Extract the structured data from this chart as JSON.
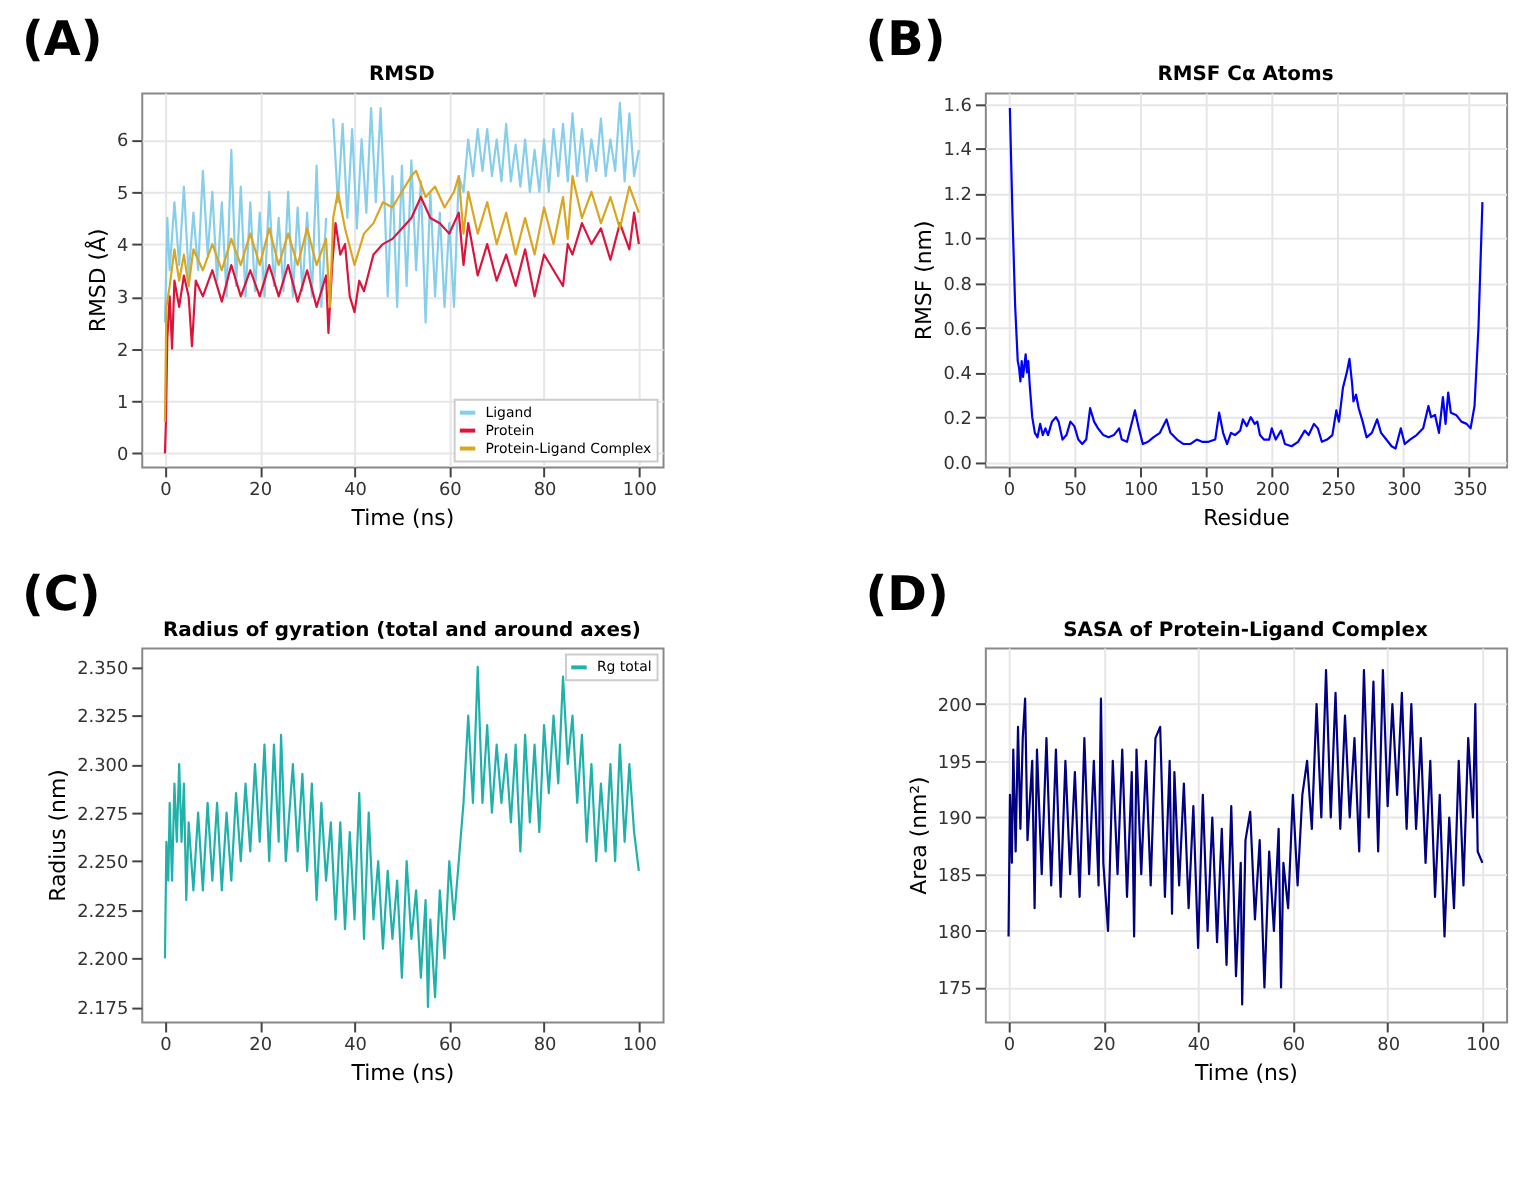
{
  "chart_data": [
    {
      "type": "line",
      "title": "RMSD",
      "xlabel": "Time (ns)",
      "ylabel": "RMSD (Å)",
      "annotations": [
        "(A)"
      ],
      "xlim": [
        -5,
        105
      ],
      "xticks": [
        0,
        20,
        40,
        60,
        80,
        100
      ],
      "ylim": [
        -0.25,
        6.9
      ],
      "yticks": [
        0,
        1,
        2,
        3,
        4,
        5,
        6
      ],
      "grid": true,
      "legend": "bottom right",
      "series": [
        {
          "name": "Ligand",
          "color": "#87ceeb",
          "x": [
            0,
            0.5,
            1,
            2,
            3,
            4,
            5,
            6,
            7,
            8,
            9,
            10,
            11,
            12,
            13,
            14,
            15,
            16,
            17,
            18,
            19,
            20,
            21,
            22,
            23,
            24,
            25,
            26,
            27,
            28,
            29,
            30,
            31,
            32,
            33,
            34,
            35,
            35.5,
            36.5,
            37.5,
            38.5,
            39.5,
            40.5,
            41.5,
            42.5,
            43.5,
            44.5,
            45.5,
            46.5,
            47,
            48,
            49,
            50,
            51,
            52,
            53,
            54,
            55,
            56,
            57,
            58,
            59,
            60,
            61,
            62,
            63,
            64,
            65,
            66,
            67,
            68,
            69,
            70,
            71,
            72,
            73,
            74,
            75,
            76,
            77,
            78,
            79,
            80,
            81,
            82,
            83,
            84,
            85,
            86,
            87,
            88,
            89,
            90,
            91,
            92,
            93,
            94,
            95,
            96,
            97,
            98,
            99,
            100
          ],
          "values": [
            2.5,
            4.5,
            3.5,
            4.8,
            3.6,
            5.1,
            3.4,
            4.6,
            3.5,
            5.4,
            3.8,
            5.0,
            3.3,
            4.8,
            3.0,
            5.8,
            3.2,
            5.1,
            3.0,
            4.8,
            3.1,
            4.6,
            3.0,
            5.0,
            3.2,
            4.5,
            3.1,
            5.0,
            3.0,
            4.7,
            3.1,
            4.6,
            3.0,
            5.5,
            2.8,
            4.5,
            null,
            6.4,
            4.8,
            6.3,
            4.5,
            6.2,
            4.3,
            6.0,
            4.6,
            6.6,
            4.8,
            6.6,
            4.4,
            3.0,
            5.3,
            2.8,
            5.5,
            3.2,
            5.6,
            3.5,
            5.2,
            2.5,
            5.0,
            3.0,
            4.6,
            2.8,
            4.4,
            2.8,
            5.3,
            5.0,
            6.0,
            5.3,
            6.2,
            5.4,
            6.2,
            5.3,
            6.0,
            5.2,
            6.3,
            5.2,
            5.9,
            5.1,
            6.0,
            5.0,
            5.8,
            5.0,
            6.0,
            5.0,
            6.2,
            5.3,
            6.3,
            5.2,
            6.5,
            5.3,
            6.2,
            5.2,
            6.0,
            5.4,
            6.4,
            5.3,
            6.0,
            5.4,
            6.7,
            5.2,
            6.5,
            5.3,
            5.8
          ]
        },
        {
          "name": "Protein",
          "color": "#dc143c",
          "x": [
            0,
            0.2,
            0.5,
            1,
            1.5,
            2,
            3,
            4,
            5,
            5.7,
            6.5,
            8,
            10,
            12,
            14,
            16,
            18,
            20,
            22,
            24,
            26,
            28,
            30,
            32,
            34,
            34.5,
            35.3,
            36,
            37,
            38,
            39,
            40,
            41,
            42,
            44,
            46,
            48,
            50,
            52,
            54,
            56,
            58,
            60,
            62,
            63,
            64,
            66,
            68,
            70,
            72,
            74,
            76,
            78,
            80,
            82,
            84,
            85,
            86,
            88,
            90,
            92,
            94,
            96,
            98,
            99,
            100
          ],
          "values": [
            0,
            0.6,
            2.2,
            3.0,
            2.0,
            3.3,
            2.8,
            3.4,
            3.0,
            2.05,
            3.3,
            3.0,
            3.5,
            2.9,
            3.6,
            3.0,
            3.5,
            3.0,
            3.6,
            3.0,
            3.6,
            2.9,
            3.5,
            2.8,
            3.4,
            2.3,
            3.6,
            4.4,
            3.8,
            4.0,
            3.0,
            2.7,
            3.3,
            3.1,
            3.8,
            4.0,
            4.1,
            4.3,
            4.5,
            4.9,
            4.5,
            4.4,
            4.2,
            4.6,
            3.6,
            4.4,
            3.4,
            4.0,
            3.3,
            3.8,
            3.2,
            3.9,
            3.0,
            3.8,
            3.5,
            3.2,
            4.0,
            3.8,
            4.4,
            4.0,
            4.3,
            3.7,
            4.4,
            3.9,
            4.6,
            4.0
          ]
        },
        {
          "name": "Protein-Ligand Complex",
          "color": "#daa520",
          "x": [
            0,
            0.3,
            1,
            2,
            3,
            4,
            5,
            6,
            8,
            10,
            12,
            14,
            16,
            18,
            20,
            22,
            24,
            26,
            28,
            30,
            32,
            34,
            34.8,
            35.5,
            36.5,
            38,
            40,
            42,
            44,
            46,
            48,
            50,
            52,
            53,
            55,
            57,
            59,
            61,
            62,
            63,
            64,
            66,
            68,
            70,
            72,
            74,
            76,
            78,
            80,
            82,
            84,
            85,
            86,
            88,
            90,
            92,
            94,
            96,
            98,
            100
          ],
          "values": [
            0.6,
            2.8,
            3.2,
            3.9,
            3.3,
            3.8,
            3.2,
            3.9,
            3.5,
            4.0,
            3.5,
            4.1,
            3.6,
            4.2,
            3.6,
            4.3,
            3.6,
            4.2,
            3.6,
            4.3,
            3.6,
            4.1,
            2.8,
            4.5,
            5.0,
            4.3,
            3.6,
            4.2,
            4.4,
            4.8,
            4.7,
            5.0,
            5.3,
            5.4,
            4.9,
            5.1,
            4.7,
            5.0,
            5.3,
            4.2,
            5.0,
            4.2,
            4.8,
            4.0,
            4.6,
            3.8,
            4.5,
            3.8,
            4.7,
            4.0,
            4.9,
            4.1,
            5.3,
            4.5,
            5.0,
            4.4,
            4.9,
            4.3,
            5.1,
            4.6
          ]
        }
      ]
    },
    {
      "type": "line",
      "title": "RMSF Cα Atoms",
      "xlabel": "Residue",
      "ylabel": "RMSF (nm)",
      "annotations": [
        "(B)"
      ],
      "xlim": [
        -18,
        378
      ],
      "xticks": [
        0,
        50,
        100,
        150,
        200,
        250,
        300,
        350
      ],
      "ylim": [
        -0.02,
        1.65
      ],
      "yticks": [
        {
          "value": 0,
          "label": "0.0"
        },
        0.2,
        0.4,
        0.6,
        0.8,
        {
          "value": 1,
          "label": "1.0"
        },
        1.2,
        1.4,
        1.6
      ],
      "grid": true,
      "series": [
        {
          "color": "#0000ff",
          "x": [
            1,
            3,
            5,
            7,
            8,
            9,
            10,
            11,
            13,
            14,
            15,
            16,
            18,
            20,
            22,
            24,
            26,
            28,
            30,
            33,
            36,
            38,
            41,
            44,
            47,
            50,
            53,
            56,
            59,
            62,
            65,
            68,
            72,
            76,
            80,
            84,
            86,
            90,
            96,
            99,
            102,
            106,
            110,
            115,
            120,
            123,
            128,
            133,
            138,
            143,
            147,
            152,
            157,
            160,
            163,
            166,
            169,
            172,
            176,
            178,
            181,
            184,
            187,
            189,
            191,
            194,
            198,
            200,
            203,
            207,
            210,
            215,
            220,
            225,
            228,
            232,
            235,
            238,
            242,
            246,
            249,
            251,
            254,
            257,
            259,
            261,
            262,
            264,
            266,
            269,
            272,
            276,
            280,
            283,
            287,
            291,
            294,
            298,
            301,
            305,
            310,
            315,
            319,
            321,
            324,
            327,
            330,
            332,
            334,
            336,
            340,
            344,
            348,
            351,
            354,
            357,
            360
          ],
          "values": [
            1.58,
            1.1,
            0.7,
            0.45,
            0.42,
            0.36,
            0.45,
            0.38,
            0.48,
            0.4,
            0.45,
            0.35,
            0.2,
            0.13,
            0.11,
            0.17,
            0.12,
            0.15,
            0.12,
            0.18,
            0.2,
            0.18,
            0.1,
            0.12,
            0.18,
            0.16,
            0.1,
            0.08,
            0.1,
            0.24,
            0.18,
            0.15,
            0.12,
            0.11,
            0.12,
            0.15,
            0.1,
            0.09,
            0.23,
            0.15,
            0.08,
            0.09,
            0.11,
            0.13,
            0.19,
            0.13,
            0.1,
            0.08,
            0.08,
            0.1,
            0.09,
            0.09,
            0.1,
            0.22,
            0.13,
            0.08,
            0.13,
            0.12,
            0.14,
            0.19,
            0.16,
            0.2,
            0.17,
            0.18,
            0.12,
            0.1,
            0.1,
            0.15,
            0.1,
            0.14,
            0.08,
            0.07,
            0.09,
            0.14,
            0.12,
            0.17,
            0.15,
            0.09,
            0.1,
            0.12,
            0.23,
            0.18,
            0.33,
            0.4,
            0.46,
            0.35,
            0.27,
            0.3,
            0.24,
            0.18,
            0.11,
            0.13,
            0.19,
            0.13,
            0.1,
            0.07,
            0.06,
            0.15,
            0.08,
            0.1,
            0.12,
            0.15,
            0.25,
            0.2,
            0.21,
            0.13,
            0.29,
            0.17,
            0.31,
            0.22,
            0.21,
            0.18,
            0.17,
            0.15,
            0.25,
            0.6,
            1.16
          ]
        }
      ]
    },
    {
      "type": "line",
      "title": "Radius of gyration (total and around axes)",
      "xlabel": "Time (ns)",
      "ylabel": "Radius (nm)",
      "annotations": [
        "(C)"
      ],
      "xlim": [
        -5,
        105
      ],
      "xticks": [
        0,
        20,
        40,
        60,
        80,
        100
      ],
      "ylim": [
        2.1675,
        2.36
      ],
      "yticks": [
        2.175,
        {
          "value": 2.2,
          "label": "2.200"
        },
        2.225,
        {
          "value": 2.25,
          "label": "2.250"
        },
        2.275,
        {
          "value": 2.3,
          "label": "2.300"
        },
        2.325,
        {
          "value": 2.35,
          "label": "2.350"
        }
      ],
      "legend": "top right",
      "series": [
        {
          "name": "Rg total",
          "color": "#20b2aa",
          "x": [
            0,
            0.3,
            0.7,
            1,
            1.5,
            2,
            2.5,
            3,
            3.5,
            4,
            4.5,
            5,
            6,
            7,
            8,
            9,
            10,
            11,
            12,
            13,
            14,
            15,
            16,
            17,
            18,
            19,
            20,
            21,
            22,
            23,
            24,
            24.5,
            25.5,
            27,
            28,
            29,
            30,
            31,
            32,
            33,
            34,
            35,
            36,
            37,
            38,
            39,
            40,
            41,
            42,
            43,
            44,
            45,
            46,
            47,
            48,
            49,
            50,
            51,
            52,
            53,
            54,
            55,
            55.5,
            56,
            57,
            58,
            59,
            60,
            61,
            62,
            63,
            64,
            65,
            66,
            67,
            68,
            69,
            70,
            71,
            72,
            73,
            74,
            75,
            76,
            77,
            78,
            79,
            80,
            81,
            82,
            83,
            84,
            85,
            86,
            87,
            88,
            89,
            90,
            91,
            92,
            93,
            94,
            95,
            96,
            97,
            98,
            99,
            100
          ],
          "values": [
            2.2,
            2.26,
            2.24,
            2.28,
            2.24,
            2.29,
            2.26,
            2.3,
            2.26,
            2.29,
            2.23,
            2.27,
            2.235,
            2.275,
            2.235,
            2.28,
            2.24,
            2.28,
            2.235,
            2.275,
            2.24,
            2.285,
            2.25,
            2.29,
            2.255,
            2.3,
            2.26,
            2.31,
            2.25,
            2.31,
            2.26,
            2.315,
            2.25,
            2.3,
            2.255,
            2.295,
            2.245,
            2.29,
            2.23,
            2.28,
            2.24,
            2.27,
            2.22,
            2.27,
            2.215,
            2.265,
            2.22,
            2.285,
            2.21,
            2.275,
            2.22,
            2.25,
            2.205,
            2.245,
            2.21,
            2.24,
            2.19,
            2.25,
            2.21,
            2.235,
            2.19,
            2.23,
            2.175,
            2.22,
            2.18,
            2.235,
            2.2,
            2.25,
            2.22,
            2.25,
            2.28,
            2.325,
            2.28,
            2.35,
            2.28,
            2.32,
            2.275,
            2.31,
            2.28,
            2.305,
            2.27,
            2.31,
            2.255,
            2.315,
            2.27,
            2.31,
            2.265,
            2.32,
            2.285,
            2.325,
            2.29,
            2.345,
            2.3,
            2.325,
            2.28,
            2.315,
            2.26,
            2.3,
            2.25,
            2.29,
            2.255,
            2.3,
            2.25,
            2.31,
            2.26,
            2.3,
            2.265,
            2.245
          ]
        }
      ]
    },
    {
      "type": "line",
      "title": "SASA of Protein-Ligand Complex",
      "xlabel": "Time (ns)",
      "ylabel": "Area (nm²)",
      "annotations": [
        "(D)"
      ],
      "xlim": [
        -5,
        105
      ],
      "xticks": [
        0,
        20,
        40,
        60,
        80,
        100
      ],
      "ylim": [
        172,
        205
      ],
      "yticks": [
        175,
        180,
        185,
        190,
        195,
        200
      ],
      "grid": true,
      "series": [
        {
          "color": "#000080",
          "x": [
            0,
            0.3,
            0.7,
            1,
            1.5,
            2,
            2.5,
            3,
            3.5,
            4,
            5,
            5.5,
            6,
            7,
            8,
            9,
            10,
            11,
            12,
            13,
            14,
            15,
            16,
            17,
            18,
            19,
            19.5,
            20,
            21,
            22,
            23,
            24,
            25,
            26,
            26.5,
            27,
            28,
            29,
            30,
            31,
            32,
            33,
            34,
            34.5,
            35,
            36,
            37,
            38,
            39,
            40,
            41,
            42,
            43,
            44,
            45,
            46,
            47,
            48,
            49,
            49.3,
            50,
            51,
            52,
            53,
            54,
            55,
            56,
            57,
            57.5,
            58,
            59,
            60,
            61,
            62,
            63,
            64,
            65,
            66,
            67,
            68,
            69,
            70,
            71,
            72,
            73,
            74,
            75,
            76,
            77,
            78,
            79,
            80,
            81,
            82,
            83,
            84,
            85,
            86,
            87,
            88,
            89,
            90,
            91,
            92,
            93,
            94,
            95,
            96,
            97,
            98,
            98.5,
            99,
            100
          ],
          "values": [
            179.5,
            192,
            186,
            196,
            187,
            198,
            189,
            197,
            200.5,
            188,
            195,
            182,
            196,
            185,
            197,
            184,
            196,
            183,
            195,
            185,
            194,
            183,
            197,
            185,
            195,
            184,
            200.5,
            186,
            180,
            195,
            185,
            196,
            183,
            194,
            179.5,
            196,
            185,
            195,
            184,
            197,
            198,
            183,
            195,
            181.5,
            194,
            184,
            193,
            182,
            191,
            178.5,
            192,
            180,
            190,
            179,
            189,
            177,
            191,
            176,
            186,
            173.5,
            188,
            190.5,
            181,
            188,
            175,
            187,
            180,
            189,
            175,
            186,
            182,
            192,
            184,
            192,
            195,
            189,
            200,
            190,
            203,
            190,
            201,
            189,
            199,
            190,
            197,
            187,
            203,
            190,
            202,
            187,
            203,
            191,
            200,
            192,
            201,
            189,
            200,
            189,
            197,
            186,
            195,
            183,
            192,
            179.5,
            190,
            182,
            195,
            184,
            197,
            190,
            200,
            187,
            186
          ]
        }
      ]
    }
  ]
}
